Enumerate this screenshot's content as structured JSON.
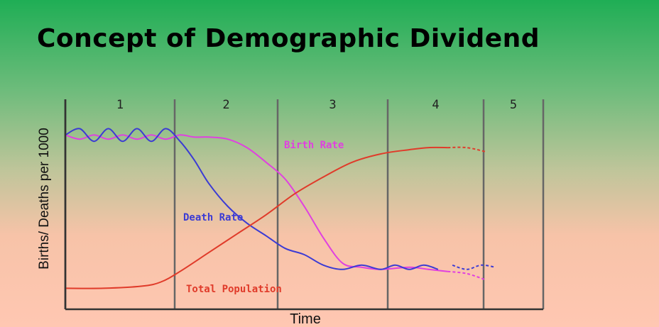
{
  "title": "Concept of Demographic Dividend",
  "chart_data": {
    "type": "line",
    "title": "",
    "xlabel": "Time",
    "ylabel": "Births/ Deaths per 1000",
    "stages": [
      "1",
      "2",
      "3",
      "4",
      "5"
    ],
    "xlim": [
      0,
      5
    ],
    "ylim": [
      0,
      100
    ],
    "grid": false,
    "series": [
      {
        "name": "Birth Rate",
        "color": "#e040e0",
        "x": [
          0,
          0.15,
          0.3,
          0.45,
          0.6,
          0.75,
          0.9,
          1.05,
          1.2,
          1.35,
          1.5,
          1.7,
          1.9,
          2.1,
          2.3,
          2.5,
          2.7,
          2.9,
          3.1,
          3.3,
          3.6,
          3.8,
          4.0,
          4.2,
          4.4
        ],
        "y": [
          83,
          81,
          83,
          81,
          83,
          81,
          83,
          81,
          83,
          82,
          82,
          81,
          77,
          70,
          62,
          49,
          34,
          22,
          20,
          19,
          20,
          19,
          18,
          17,
          14
        ],
        "dashed_from_x": 4.0
      },
      {
        "name": "Death Rate",
        "color": "#3b3bd4",
        "x": [
          0,
          0.15,
          0.3,
          0.45,
          0.6,
          0.75,
          0.9,
          1.05,
          1.2,
          1.35,
          1.5,
          1.7,
          1.9,
          2.1,
          2.3,
          2.5,
          2.7,
          2.9,
          3.1,
          3.3,
          3.45,
          3.6,
          3.75,
          3.9,
          4.05,
          4.2,
          4.35,
          4.5
        ],
        "y": [
          83,
          86,
          80,
          86,
          80,
          86,
          80,
          86,
          80,
          71,
          60,
          49,
          41,
          35,
          29,
          26,
          21,
          19,
          21,
          19,
          21,
          19,
          21,
          19,
          21,
          19,
          21,
          20
        ],
        "dashed_from_x": 4.0
      },
      {
        "name": "Total Population",
        "color": "#e03b2a",
        "x": [
          0,
          0.4,
          0.8,
          1.0,
          1.2,
          1.5,
          1.8,
          2.1,
          2.4,
          2.7,
          3.0,
          3.3,
          3.6,
          3.8,
          4.0,
          4.2,
          4.4
        ],
        "y": [
          10,
          10,
          11,
          13,
          18,
          27,
          36,
          45,
          55,
          63,
          70,
          74,
          76,
          77,
          77,
          77,
          75
        ],
        "dashed_from_x": 4.0
      }
    ]
  }
}
